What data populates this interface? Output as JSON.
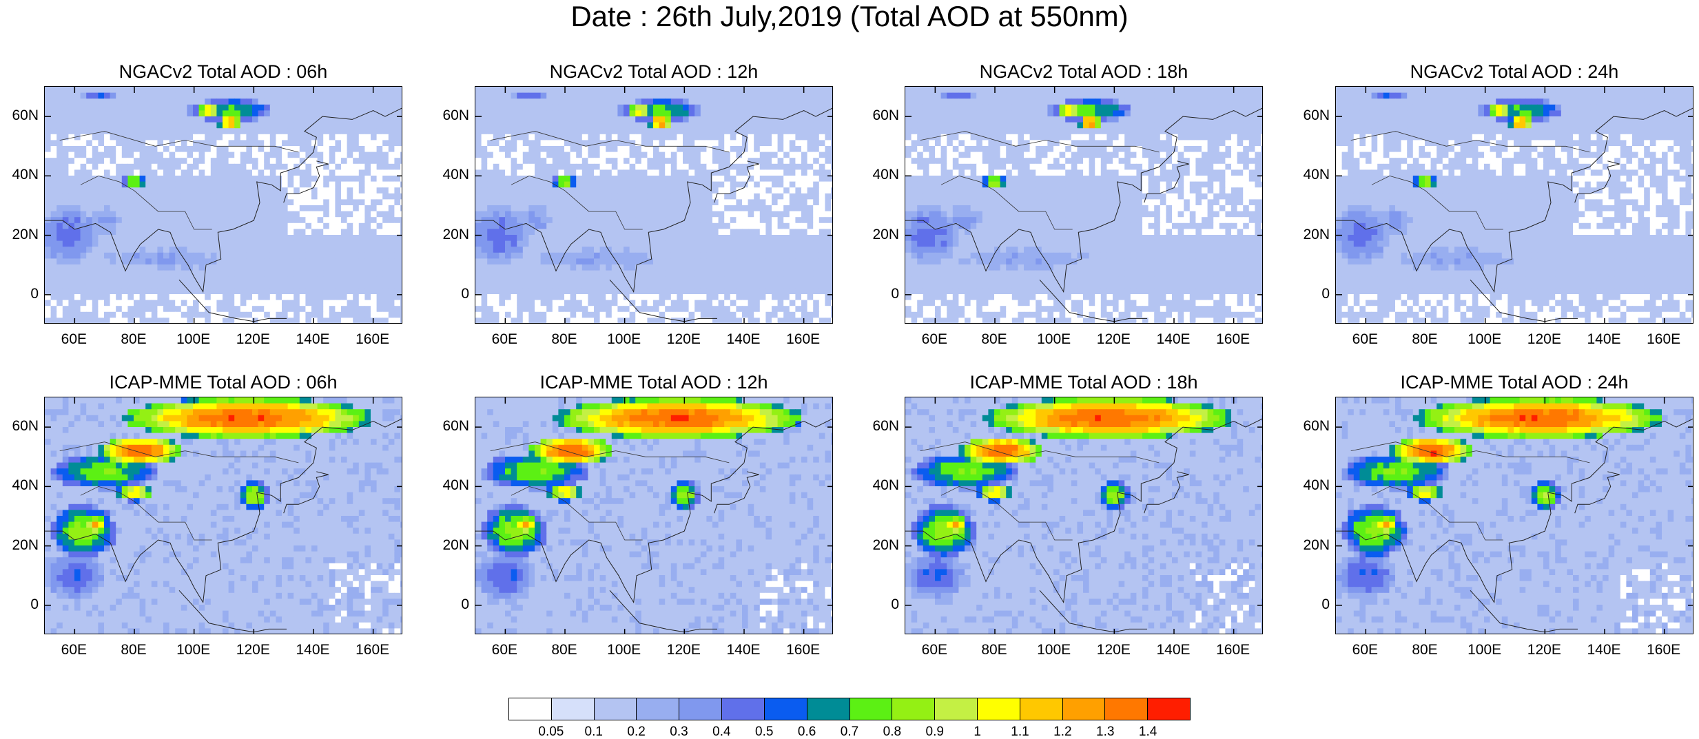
{
  "figure": {
    "title": "Date : 26th July,2019 (Total AOD at 550nm)"
  },
  "axes": {
    "lon_range": [
      50,
      170
    ],
    "lat_range": [
      -10,
      70
    ],
    "x_ticks": [
      "60E",
      "80E",
      "100E",
      "120E",
      "140E",
      "160E"
    ],
    "x_tick_values": [
      60,
      80,
      100,
      120,
      140,
      160
    ],
    "y_ticks": [
      "60N",
      "40N",
      "20N",
      "0"
    ],
    "y_tick_values": [
      60,
      40,
      20,
      0
    ]
  },
  "panels": [
    {
      "title": "NGACv2 Total AOD : 06h",
      "model": "NGACv2",
      "hour": "06h"
    },
    {
      "title": "NGACv2 Total AOD : 12h",
      "model": "NGACv2",
      "hour": "12h"
    },
    {
      "title": "NGACv2 Total AOD : 18h",
      "model": "NGACv2",
      "hour": "18h"
    },
    {
      "title": "NGACv2 Total AOD : 24h",
      "model": "NGACv2",
      "hour": "24h"
    },
    {
      "title": "ICAP-MME Total AOD : 06h",
      "model": "ICAP-MME",
      "hour": "06h"
    },
    {
      "title": "ICAP-MME Total AOD : 12h",
      "model": "ICAP-MME",
      "hour": "12h"
    },
    {
      "title": "ICAP-MME Total AOD : 18h",
      "model": "ICAP-MME",
      "hour": "18h"
    },
    {
      "title": "ICAP-MME Total AOD : 24h",
      "model": "ICAP-MME",
      "hour": "24h"
    }
  ],
  "colorbar": {
    "labels": [
      "0.05",
      "0.1",
      "0.2",
      "0.3",
      "0.4",
      "0.5",
      "0.6",
      "0.7",
      "0.8",
      "0.9",
      "1",
      "1.1",
      "1.2",
      "1.3",
      "1.4"
    ],
    "colors": [
      "#ffffff",
      "#d6e0fa",
      "#b4c4f2",
      "#98aef0",
      "#8098ee",
      "#6070ea",
      "#0a5cf0",
      "#008c96",
      "#5cf014",
      "#94f014",
      "#c4f044",
      "#ffff00",
      "#ffc800",
      "#ffa000",
      "#ff7800",
      "#ff1e00"
    ]
  },
  "features": {
    "ngac": {
      "bg": "#cfd9f6",
      "regions": [
        {
          "lon": 112,
          "lat": 62,
          "rlon": 14,
          "rlat": 4,
          "v": 0.75,
          "cls": "Siberia plume"
        },
        {
          "lon": 105,
          "lat": 62,
          "rlon": 4,
          "rlat": 3,
          "v": 1.1
        },
        {
          "lon": 112,
          "lat": 58,
          "rlon": 4,
          "rlat": 2,
          "v": 1.4
        },
        {
          "lon": 68,
          "lat": 67,
          "rlon": 6,
          "rlat": 2,
          "v": 0.5
        },
        {
          "lon": 80,
          "lat": 38,
          "rlon": 4,
          "rlat": 2.5,
          "v": 0.9
        },
        {
          "lon": 58,
          "lat": 20,
          "rlon": 10,
          "rlat": 10,
          "v": 0.45
        },
        {
          "lon": 70,
          "lat": 25,
          "rlon": 6,
          "rlat": 5,
          "v": 0.35
        },
        {
          "lon": 90,
          "lat": 12,
          "rlon": 25,
          "rlat": 4,
          "v": 0.3
        }
      ]
    },
    "icap": {
      "bg": "#c6d2f4",
      "regions": [
        {
          "lon": 118,
          "lat": 63,
          "rlon": 42,
          "rlat": 7,
          "v": 1.4,
          "cls": "Siberia plume"
        },
        {
          "lon": 82,
          "lat": 52,
          "rlon": 14,
          "rlat": 5,
          "v": 1.4
        },
        {
          "lon": 70,
          "lat": 45,
          "rlon": 18,
          "rlat": 6,
          "v": 0.8
        },
        {
          "lon": 80,
          "lat": 38,
          "rlon": 6,
          "rlat": 3,
          "v": 1.1
        },
        {
          "lon": 120,
          "lat": 37,
          "rlon": 5,
          "rlat": 5,
          "v": 0.9
        },
        {
          "lon": 63,
          "lat": 25,
          "rlon": 11,
          "rlat": 9,
          "v": 0.85
        },
        {
          "lon": 67,
          "lat": 27,
          "rlon": 4,
          "rlat": 3,
          "v": 1.2
        },
        {
          "lon": 60,
          "lat": 10,
          "rlon": 10,
          "rlat": 8,
          "v": 0.5
        }
      ]
    }
  }
}
